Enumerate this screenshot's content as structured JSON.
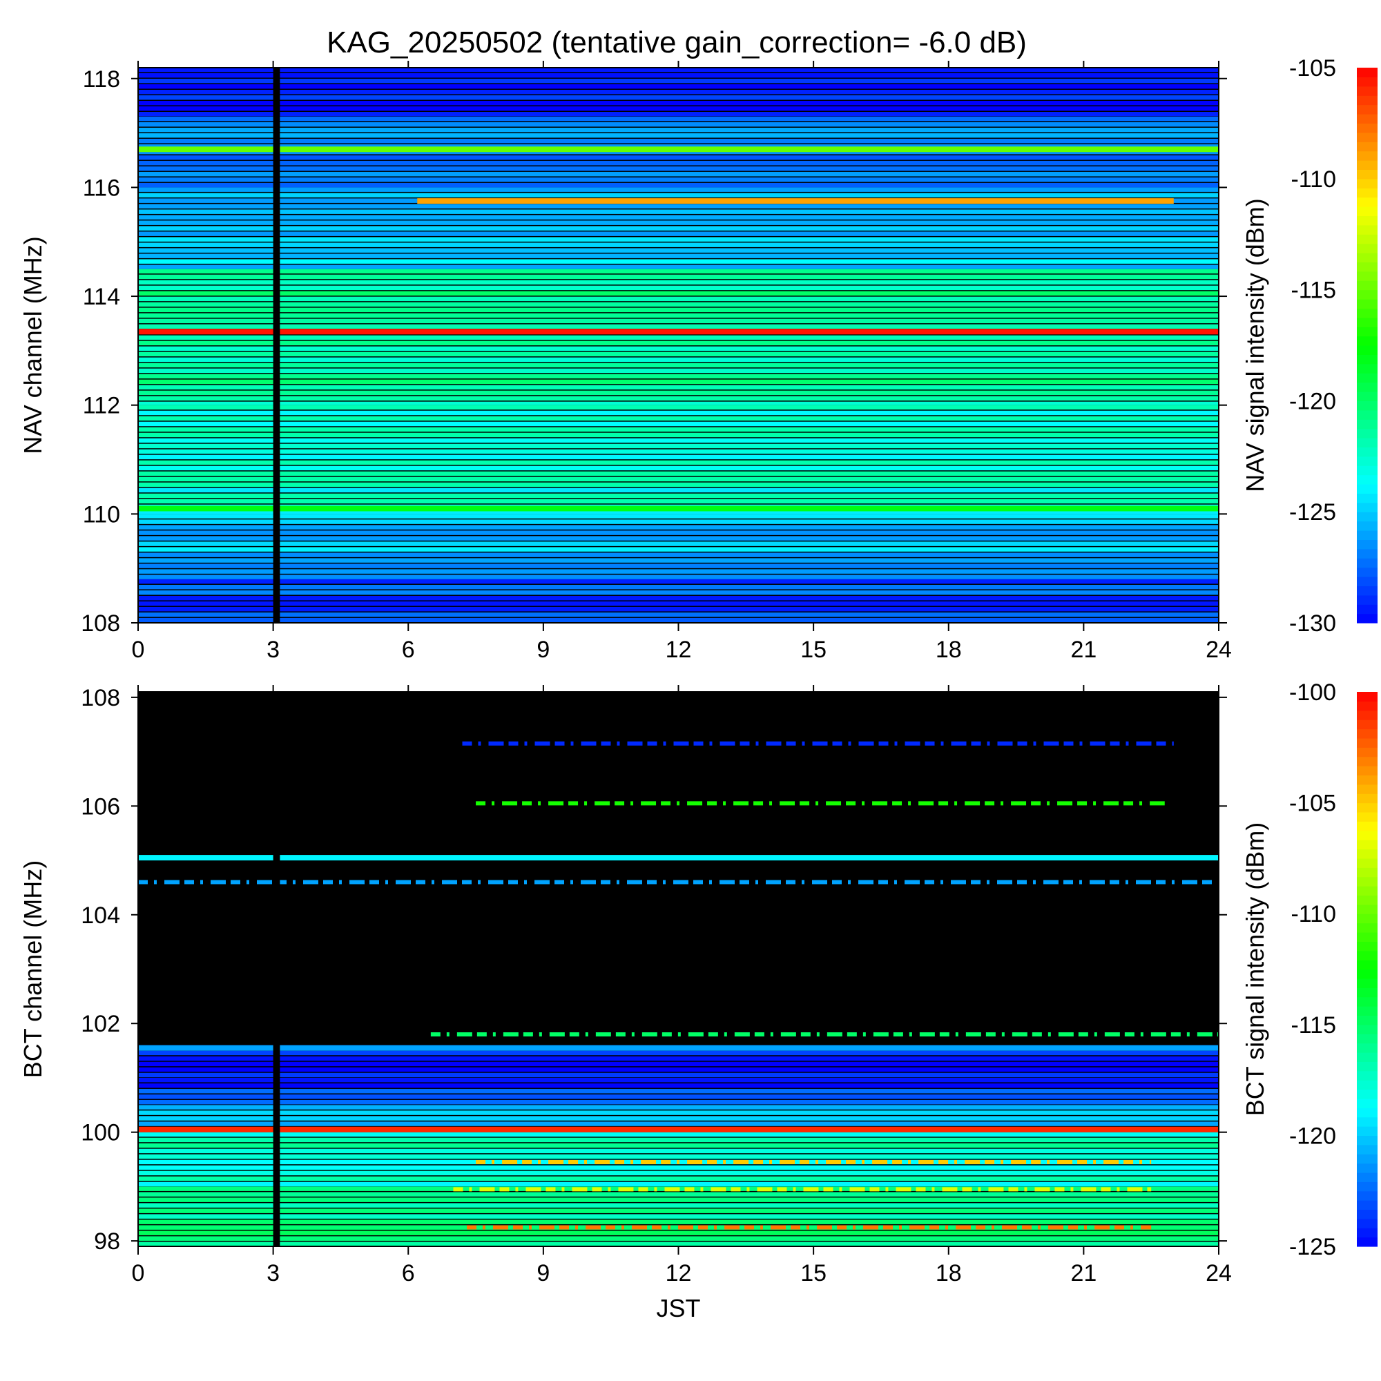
{
  "title": "KAG_20250502 (tentative gain_correction= -6.0 dB)",
  "chart_data": [
    {
      "type": "heatmap",
      "panel": "top",
      "xlabel": "",
      "ylabel": "NAV channel (MHz)",
      "colorbar_label": "NAV signal intensity (dBm)",
      "xlim": [
        0,
        24
      ],
      "ylim": [
        108,
        118.2
      ],
      "clim": [
        -130,
        -105
      ],
      "x_ticks": [
        0,
        3,
        6,
        9,
        12,
        15,
        18,
        21,
        24
      ],
      "y_ticks": [
        108,
        110,
        112,
        114,
        116,
        118
      ],
      "colorbar_ticks": [
        -130,
        -125,
        -120,
        -115,
        -110,
        -105
      ],
      "colormap": [
        "#0000ff",
        "#00ffff",
        "#00ff00",
        "#ffff00",
        "#ff0000"
      ],
      "background_levels": [
        {
          "mhz_from": 108.0,
          "mhz_to": 108.8,
          "dbm": -128
        },
        {
          "mhz_from": 108.8,
          "mhz_to": 110.0,
          "dbm": -125.5
        },
        {
          "mhz_from": 110.0,
          "mhz_to": 112.0,
          "dbm": -123
        },
        {
          "mhz_from": 112.0,
          "mhz_to": 114.5,
          "dbm": -121.5
        },
        {
          "mhz_from": 114.5,
          "mhz_to": 116.0,
          "dbm": -125
        },
        {
          "mhz_from": 116.0,
          "mhz_to": 117.3,
          "dbm": -127
        },
        {
          "mhz_from": 117.3,
          "mhz_to": 118.2,
          "dbm": -129
        }
      ],
      "strong_channels": [
        {
          "mhz": 113.35,
          "dbm": -105.5,
          "hour_from": 0,
          "hour_to": 24
        },
        {
          "mhz": 116.7,
          "dbm": -115,
          "hour_from": 0,
          "hour_to": 24
        },
        {
          "mhz": 115.75,
          "dbm": -109,
          "hour_from": 6.2,
          "hour_to": 23.0
        },
        {
          "mhz": 110.1,
          "dbm": -118,
          "hour_from": 0,
          "hour_to": 24
        }
      ],
      "data_gap": {
        "hour_from": 3.0,
        "hour_to": 3.15
      }
    },
    {
      "type": "heatmap",
      "panel": "bottom",
      "xlabel": "JST",
      "ylabel": "BCT channel (MHz)",
      "colorbar_label": "BCT signal intensity (dBm)",
      "xlim": [
        0,
        24
      ],
      "ylim": [
        97.9,
        108.1
      ],
      "clim": [
        -125,
        -100
      ],
      "x_ticks": [
        0,
        3,
        6,
        9,
        12,
        15,
        18,
        21,
        24
      ],
      "y_ticks": [
        98,
        100,
        102,
        104,
        106,
        108
      ],
      "colorbar_ticks": [
        -125,
        -120,
        -115,
        -110,
        -105,
        -100
      ],
      "colormap": [
        "#0000ff",
        "#00ffff",
        "#00ff00",
        "#ffff00",
        "#ff0000"
      ],
      "background_levels": [
        {
          "mhz_from": 97.9,
          "mhz_to": 99.0,
          "dbm": -116
        },
        {
          "mhz_from": 99.0,
          "mhz_to": 100.0,
          "dbm": -117.5
        },
        {
          "mhz_from": 100.0,
          "mhz_to": 100.5,
          "dbm": -120.5
        },
        {
          "mhz_from": 100.5,
          "mhz_to": 101.0,
          "dbm": -123.5
        },
        {
          "mhz_from": 101.0,
          "mhz_to": 101.6,
          "dbm": -124.5
        }
      ],
      "strong_channels": [
        {
          "mhz": 100.05,
          "dbm": -101,
          "hour_from": 0,
          "hour_to": 24
        },
        {
          "mhz": 105.05,
          "dbm": -119,
          "hour_from": 0,
          "hour_to": 24
        },
        {
          "mhz": 101.55,
          "dbm": -121,
          "hour_from": 0,
          "hour_to": 24
        }
      ],
      "intermittent_channels": [
        {
          "mhz": 107.15,
          "dbm": -124,
          "hour_from": 7.2,
          "hour_to": 23.0
        },
        {
          "mhz": 106.05,
          "dbm": -112,
          "hour_from": 7.5,
          "hour_to": 22.8
        },
        {
          "mhz": 104.6,
          "dbm": -121,
          "hour_from": 0,
          "hour_to": 24
        },
        {
          "mhz": 101.8,
          "dbm": -115,
          "hour_from": 6.5,
          "hour_to": 24
        },
        {
          "mhz": 99.45,
          "dbm": -105,
          "hour_from": 7.5,
          "hour_to": 22.5
        },
        {
          "mhz": 98.95,
          "dbm": -107,
          "hour_from": 7.0,
          "hour_to": 22.5
        },
        {
          "mhz": 98.25,
          "dbm": -103,
          "hour_from": 7.3,
          "hour_to": 22.5
        }
      ],
      "data_gap": {
        "hour_from": 3.0,
        "hour_to": 3.15
      }
    }
  ]
}
